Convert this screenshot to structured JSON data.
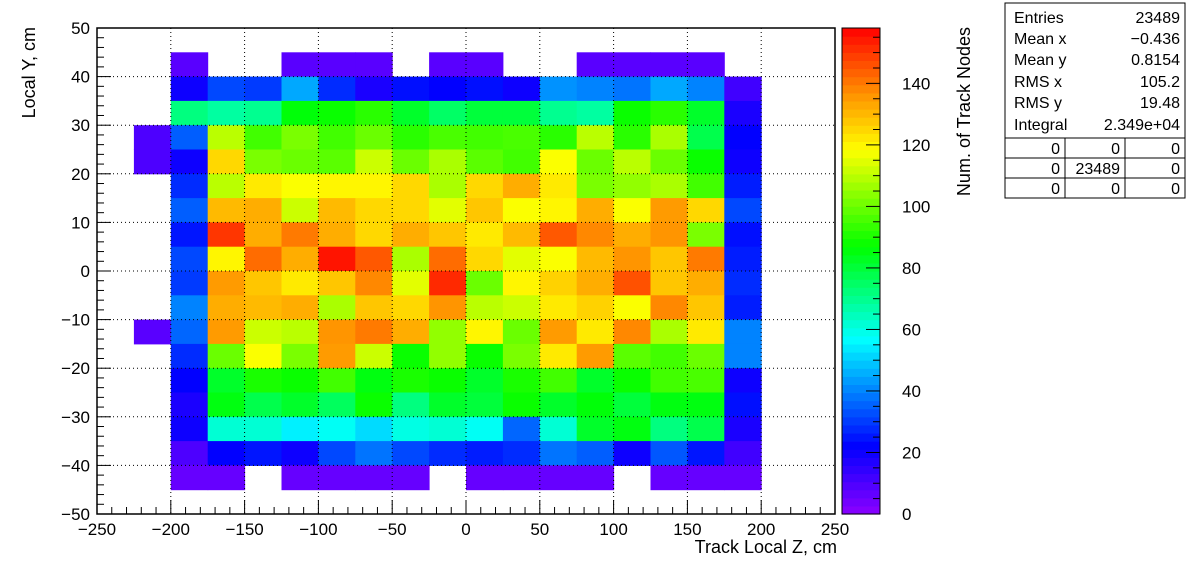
{
  "chart_data": {
    "type": "heatmap",
    "title": "",
    "xlabel": "Track Local Z, cm",
    "ylabel": "Local Y, cm",
    "zlabel": "Num. of Track Nodes",
    "xlim": [
      -250,
      250
    ],
    "ylim": [
      -50,
      50
    ],
    "zlim": [
      0,
      158
    ],
    "grid": true,
    "x_ticks": [
      "−250",
      "−200",
      "−150",
      "−100",
      "−50",
      "0",
      "50",
      "100",
      "150",
      "200",
      "250"
    ],
    "y_ticks": [
      "50",
      "40",
      "30",
      "20",
      "10",
      "0",
      "−10",
      "−20",
      "−30",
      "−40",
      "−50"
    ],
    "z_ticks": [
      "0",
      "20",
      "40",
      "60",
      "80",
      "100",
      "120",
      "140"
    ],
    "x_bin_edges": [
      -225,
      -200,
      -175,
      -150,
      -125,
      -100,
      -75,
      -50,
      -25,
      0,
      25,
      50,
      75,
      100,
      125,
      150,
      175,
      200
    ],
    "y_bin_edges": [
      -45,
      -40,
      -35,
      -30,
      -25,
      -20,
      -15,
      -10,
      -5,
      0,
      5,
      10,
      15,
      20,
      25,
      30,
      35,
      40,
      45
    ],
    "y_rows_top_to_bottom": "row 0 = y 40..45, last row = y -45..-40",
    "values": [
      [
        0,
        8,
        0,
        0,
        8,
        8,
        8,
        0,
        8,
        8,
        0,
        0,
        8,
        8,
        8,
        8,
        0
      ],
      [
        0,
        20,
        32,
        30,
        45,
        28,
        18,
        24,
        22,
        24,
        20,
        42,
        40,
        38,
        45,
        40,
        12
      ],
      [
        0,
        72,
        68,
        70,
        86,
        88,
        92,
        82,
        75,
        80,
        80,
        70,
        68,
        88,
        92,
        82,
        18
      ],
      [
        10,
        35,
        110,
        95,
        102,
        95,
        100,
        92,
        96,
        95,
        96,
        92,
        110,
        92,
        108,
        78,
        22
      ],
      [
        10,
        20,
        125,
        102,
        100,
        98,
        112,
        100,
        108,
        98,
        95,
        118,
        100,
        110,
        100,
        88,
        20
      ],
      [
        0,
        28,
        110,
        122,
        118,
        120,
        120,
        125,
        108,
        125,
        132,
        122,
        102,
        105,
        108,
        95,
        26
      ],
      [
        0,
        35,
        130,
        132,
        112,
        130,
        125,
        125,
        115,
        128,
        118,
        120,
        132,
        118,
        135,
        125,
        32
      ],
      [
        0,
        25,
        150,
        132,
        140,
        132,
        125,
        132,
        128,
        122,
        130,
        145,
        138,
        132,
        136,
        102,
        24
      ],
      [
        0,
        32,
        120,
        142,
        132,
        155,
        145,
        108,
        142,
        125,
        115,
        118,
        130,
        136,
        128,
        140,
        26
      ],
      [
        0,
        30,
        135,
        128,
        122,
        128,
        138,
        115,
        152,
        100,
        120,
        126,
        132,
        146,
        128,
        132,
        28
      ],
      [
        0,
        40,
        132,
        130,
        132,
        108,
        128,
        125,
        136,
        110,
        112,
        122,
        126,
        118,
        138,
        128,
        26
      ],
      [
        8,
        36,
        135,
        112,
        110,
        136,
        140,
        132,
        105,
        120,
        100,
        135,
        122,
        138,
        108,
        122,
        40
      ],
      [
        0,
        28,
        100,
        118,
        102,
        135,
        112,
        88,
        105,
        88,
        102,
        122,
        135,
        98,
        95,
        100,
        40
      ],
      [
        0,
        22,
        82,
        90,
        88,
        95,
        85,
        90,
        88,
        82,
        90,
        95,
        82,
        88,
        95,
        96,
        20
      ],
      [
        0,
        18,
        85,
        78,
        82,
        76,
        88,
        72,
        82,
        80,
        88,
        82,
        86,
        80,
        85,
        85,
        24
      ],
      [
        0,
        20,
        62,
        62,
        55,
        58,
        52,
        60,
        62,
        58,
        36,
        62,
        82,
        85,
        72,
        78,
        18
      ],
      [
        0,
        10,
        22,
        25,
        20,
        32,
        38,
        32,
        28,
        26,
        28,
        38,
        35,
        20,
        34,
        25,
        12
      ],
      [
        0,
        6,
        6,
        0,
        6,
        6,
        6,
        6,
        0,
        6,
        6,
        6,
        6,
        0,
        6,
        6,
        6
      ]
    ]
  },
  "stats_box": {
    "rows": [
      {
        "label": "Entries",
        "value": "23489"
      },
      {
        "label": "Mean x",
        "value": "−0.436"
      },
      {
        "label": "Mean y",
        "value": "0.8154"
      },
      {
        "label": "RMS x",
        "value": "105.2"
      },
      {
        "label": "RMS y",
        "value": "19.48"
      },
      {
        "label": "Integral",
        "value": "2.349e+04"
      }
    ],
    "grid": [
      [
        "0",
        "0",
        "0"
      ],
      [
        "0",
        "23489",
        "0"
      ],
      [
        "0",
        "0",
        "0"
      ]
    ]
  }
}
